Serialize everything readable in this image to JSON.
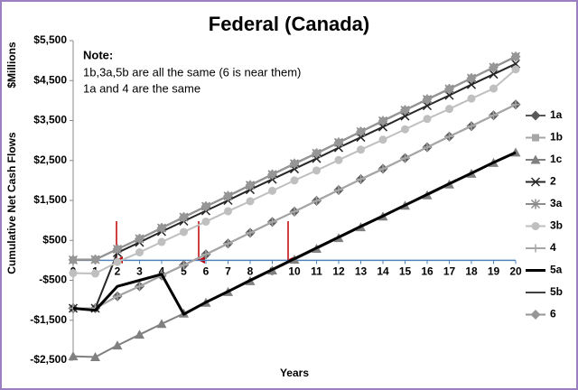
{
  "chart_data": {
    "type": "line",
    "title": "Federal (Canada)",
    "y_label": "Cumulative Net Cash Flows",
    "y_unit": "$Millions",
    "x_label": "Years",
    "notes": [
      "Note:",
      "1b,3a,5b are all the same (6 is near them)",
      "1a and 4 are the same"
    ],
    "x": [
      0,
      1,
      2,
      3,
      4,
      5,
      6,
      7,
      8,
      9,
      10,
      11,
      12,
      13,
      14,
      15,
      16,
      17,
      18,
      19,
      20
    ],
    "xlim": [
      0,
      20
    ],
    "xticks": [
      0,
      1,
      2,
      3,
      4,
      5,
      6,
      7,
      8,
      9,
      10,
      11,
      12,
      13,
      14,
      15,
      16,
      17,
      18,
      19,
      20
    ],
    "ylim": [
      -2500,
      5500
    ],
    "yticks": [
      {
        "value": -2500,
        "label": "-$2,500"
      },
      {
        "value": -1500,
        "label": "-$1,500"
      },
      {
        "value": -500,
        "label": "-$500"
      },
      {
        "value": 500,
        "label": "$500"
      },
      {
        "value": 1500,
        "label": "$1,500"
      },
      {
        "value": 2500,
        "label": "$2,500"
      },
      {
        "value": 3500,
        "label": "$3,500"
      },
      {
        "value": 4500,
        "label": "$4,500"
      },
      {
        "value": 5500,
        "label": "$5,500"
      }
    ],
    "grid": false,
    "legend": "right",
    "axis_color": "#4f81bd",
    "series": [
      {
        "name": "1a",
        "color": "#595959",
        "marker": "diamond",
        "line_width": 2,
        "values": [
          -1200,
          -1200,
          -900,
          -650,
          -380,
          -120,
          150,
          420,
          690,
          960,
          1220,
          1490,
          1760,
          2030,
          2290,
          2560,
          2830,
          3100,
          3360,
          3630,
          3900
        ]
      },
      {
        "name": "1b",
        "color": "#a6a6a6",
        "marker": "square",
        "line_width": 2,
        "values": [
          10,
          20,
          280,
          540,
          810,
          1080,
          1350,
          1610,
          1880,
          2150,
          2420,
          2680,
          2950,
          3220,
          3490,
          3760,
          4030,
          4290,
          4560,
          4830,
          5100
        ]
      },
      {
        "name": "1c",
        "color": "#808080",
        "marker": "triangle",
        "line_width": 2,
        "values": [
          -2400,
          -2420,
          -2130,
          -1860,
          -1590,
          -1330,
          -1060,
          -790,
          -520,
          -250,
          20,
          290,
          560,
          830,
          1100,
          1370,
          1630,
          1900,
          2170,
          2440,
          2700
        ]
      },
      {
        "name": "2",
        "color": "#262626",
        "marker": "x",
        "line_width": 2,
        "values": [
          -1200,
          -1200,
          190,
          450,
          720,
          980,
          1240,
          1500,
          1770,
          2030,
          2290,
          2550,
          2820,
          3080,
          3340,
          3610,
          3870,
          4130,
          4400,
          4660,
          4920
        ]
      },
      {
        "name": "3a",
        "color": "#8c8c8c",
        "marker": "star",
        "line_width": 2,
        "values": [
          10,
          20,
          280,
          540,
          810,
          1080,
          1350,
          1610,
          1880,
          2150,
          2420,
          2680,
          2950,
          3220,
          3490,
          3760,
          4030,
          4290,
          4560,
          4830,
          5100
        ]
      },
      {
        "name": "3b",
        "color": "#bfbfbf",
        "marker": "circle",
        "line_width": 2,
        "values": [
          -320,
          -330,
          -40,
          200,
          460,
          710,
          970,
          1230,
          1480,
          1740,
          2000,
          2250,
          2510,
          2770,
          3020,
          3280,
          3540,
          3790,
          4050,
          4300,
          4780
        ]
      },
      {
        "name": "4",
        "color": "#a6a6a6",
        "marker": "plus",
        "line_width": 2,
        "values": [
          -1200,
          -1200,
          -900,
          -650,
          -380,
          -120,
          150,
          420,
          690,
          960,
          1220,
          1490,
          1760,
          2030,
          2290,
          2560,
          2830,
          3100,
          3360,
          3630,
          3900
        ]
      },
      {
        "name": "5a",
        "color": "#000000",
        "marker": "none",
        "line_width": 3,
        "values": [
          -1200,
          -1250,
          -650,
          -500,
          -350,
          -1350,
          -1050,
          -780,
          -500,
          -230,
          40,
          310,
          580,
          850,
          1110,
          1380,
          1650,
          1920,
          2180,
          2450,
          2700
        ]
      },
      {
        "name": "5b",
        "color": "#404040",
        "marker": "none",
        "line_width": 2,
        "values": [
          10,
          20,
          280,
          540,
          810,
          1080,
          1350,
          1610,
          1880,
          2150,
          2420,
          2680,
          2950,
          3220,
          3490,
          3760,
          4030,
          4290,
          4560,
          4830,
          5100
        ]
      },
      {
        "name": "6",
        "color": "#969696",
        "marker": "diamond",
        "line_width": 2,
        "values": [
          10,
          20,
          280,
          540,
          810,
          1080,
          1350,
          1610,
          1880,
          2150,
          2420,
          2680,
          2950,
          3220,
          3490,
          3760,
          4030,
          4290,
          4560,
          4830,
          5100
        ]
      }
    ]
  }
}
